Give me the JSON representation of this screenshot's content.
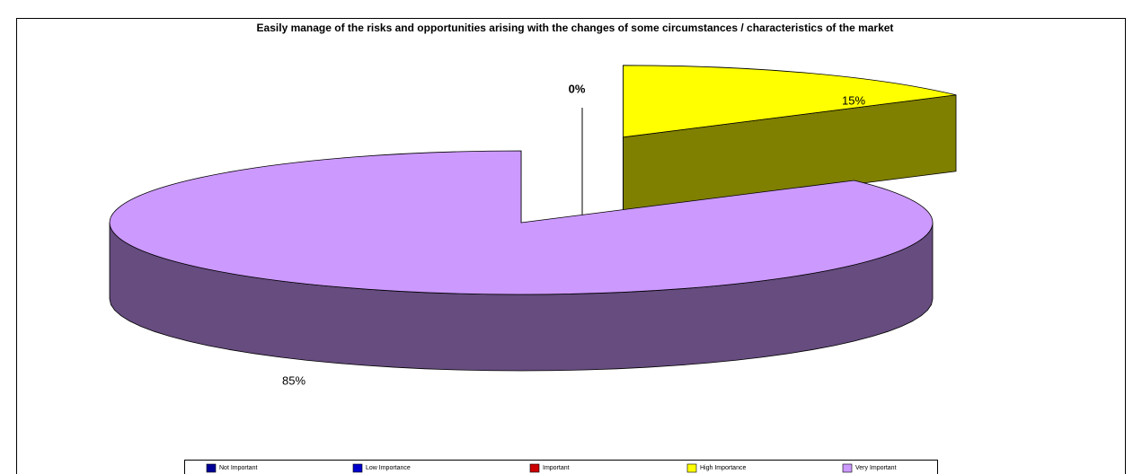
{
  "chart_data": {
    "type": "pie3d",
    "title": "Easily manage of the risks and opportunities arising with the changes of some circumstances / characteristics of the market",
    "categories": [
      "Not Important",
      "Low Importance",
      "Important",
      "High Importance",
      "Very Important"
    ],
    "values": [
      0,
      0,
      0,
      15,
      85
    ],
    "value_labels": [
      null,
      null,
      "0%",
      "15%",
      "85%"
    ],
    "colors": [
      "#000099",
      "#0000cc",
      "#cc0000",
      "#ffff00",
      "#cc99ff"
    ],
    "legend": "bottom"
  }
}
